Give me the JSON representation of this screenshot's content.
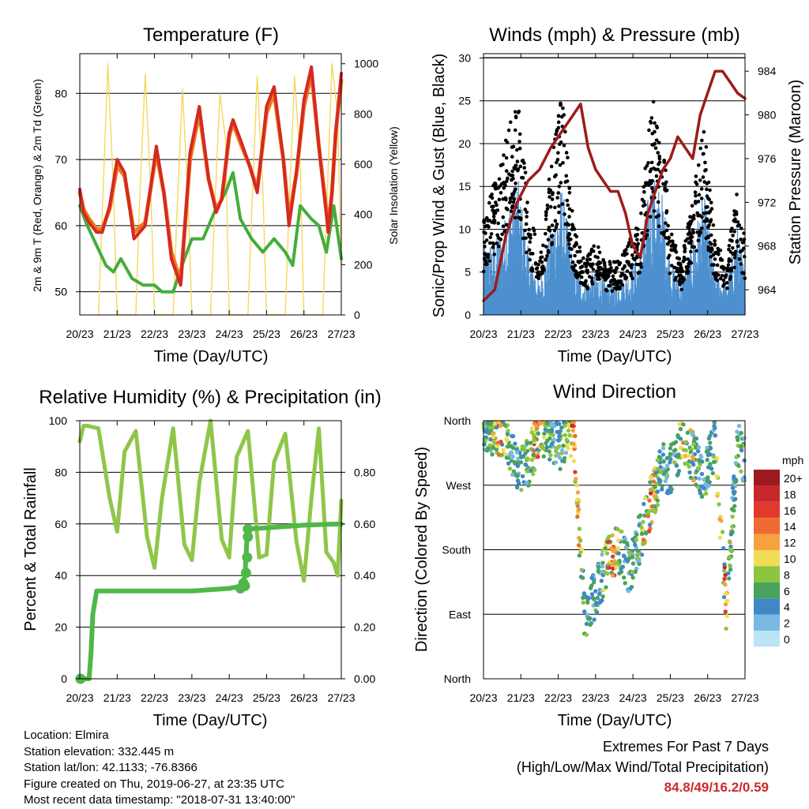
{
  "chart_data": [
    {
      "type": "line",
      "title": "Temperature (F)",
      "xlabel": "Time (Day/UTC)",
      "ylabel": "2m & 9m T (Red, Orange) & 2m Td (Green)",
      "ylabel_right": "Solar Insolation (Yellow)",
      "x_ticks": [
        "20/23",
        "21/23",
        "22/23",
        "23/23",
        "24/23",
        "25/23",
        "26/23",
        "27/23"
      ],
      "y_ticks": [
        "50",
        "60",
        "70",
        "80"
      ],
      "y2_ticks": [
        "0",
        "200",
        "400",
        "600",
        "800",
        "1000"
      ],
      "xlim": [
        0,
        7
      ],
      "ylim": [
        46.5,
        86
      ],
      "y2lim": [
        0,
        1040
      ],
      "grid": true,
      "series": [
        {
          "key": "t2m",
          "color": "#d42a20",
          "x": [
            0,
            0.1,
            0.25,
            0.45,
            0.6,
            0.8,
            1.0,
            1.2,
            1.45,
            1.75,
            2.05,
            2.25,
            2.45,
            2.7,
            2.95,
            3.2,
            3.45,
            3.65,
            3.8,
            4.0,
            4.1,
            4.3,
            4.55,
            4.75,
            5.0,
            5.2,
            5.45,
            5.6,
            5.8,
            6.0,
            6.2,
            6.4,
            6.65,
            6.75,
            6.85,
            7.0
          ],
          "values": [
            65.5,
            62,
            60.5,
            59,
            59,
            63,
            70,
            68,
            58,
            60,
            72,
            65,
            55,
            51,
            71,
            78,
            67,
            62,
            64,
            74,
            76,
            73,
            69,
            65,
            78,
            81,
            70,
            60,
            68,
            79,
            84,
            72,
            59,
            65,
            74,
            83
          ]
        },
        {
          "key": "t9m",
          "color": "#f07820",
          "x": [
            0,
            0.1,
            0.25,
            0.45,
            0.6,
            0.8,
            1.0,
            1.2,
            1.45,
            1.75,
            2.05,
            2.25,
            2.45,
            2.7,
            2.95,
            3.2,
            3.45,
            3.65,
            3.8,
            4.0,
            4.1,
            4.3,
            4.55,
            4.75,
            5.0,
            5.2,
            5.45,
            5.6,
            5.8,
            6.0,
            6.2,
            6.4,
            6.65,
            6.75,
            6.85,
            7.0
          ],
          "values": [
            65,
            62.5,
            61,
            59.5,
            59.5,
            62.5,
            69,
            67.5,
            59,
            60.5,
            71,
            65,
            56,
            51.5,
            70,
            77,
            67,
            62.5,
            64,
            73.5,
            75.5,
            72.5,
            69,
            65.5,
            77,
            80,
            70,
            61,
            68,
            78,
            83,
            72,
            60,
            65,
            74,
            82
          ]
        },
        {
          "key": "td",
          "color": "#44ad3c",
          "x": [
            0,
            0.2,
            0.45,
            0.7,
            0.9,
            1.1,
            1.4,
            1.7,
            2.0,
            2.2,
            2.5,
            2.8,
            3.0,
            3.3,
            3.6,
            3.9,
            4.1,
            4.3,
            4.6,
            4.9,
            5.2,
            5.5,
            5.7,
            5.9,
            6.2,
            6.4,
            6.6,
            6.8,
            7.0
          ],
          "values": [
            63,
            60,
            57,
            54,
            53,
            55,
            52,
            51,
            51,
            50,
            50,
            55,
            58,
            58,
            62,
            65,
            68,
            61,
            58,
            56,
            58,
            56,
            54,
            63,
            61,
            60,
            56,
            63,
            55
          ]
        },
        {
          "key": "solar",
          "color": "#f6d859",
          "axis": "y2",
          "x": [
            0.5,
            0.6,
            0.75,
            0.9,
            1.0,
            1.1,
            1.25,
            1.5,
            1.6,
            1.75,
            1.9,
            2.0,
            2.1,
            2.25,
            2.5,
            2.6,
            2.75,
            2.9,
            3.0,
            3.1,
            3.25,
            3.5,
            3.6,
            3.75,
            3.9,
            4.0,
            4.1,
            4.25,
            4.5,
            4.6,
            4.75,
            4.9,
            5.0,
            5.1,
            5.25,
            5.5,
            5.6,
            5.75,
            5.9,
            6.0,
            6.1,
            6.25,
            6.5,
            6.6,
            6.75,
            6.9,
            7.0
          ],
          "values": [
            0,
            400,
            1000,
            500,
            0,
            0,
            0,
            0,
            450,
            960,
            500,
            0,
            0,
            0,
            0,
            400,
            900,
            450,
            0,
            0,
            0,
            0,
            380,
            880,
            700,
            0,
            0,
            0,
            0,
            400,
            950,
            500,
            0,
            0,
            0,
            0,
            420,
            950,
            600,
            0,
            0,
            0,
            0,
            380,
            1000,
            800,
            200
          ]
        }
      ]
    },
    {
      "type": "scatter",
      "title": "Winds (mph) & Pressure (mb)",
      "xlabel": "Time (Day/UTC)",
      "ylabel": "Sonic/Prop Wind & Gust (Blue, Black)",
      "ylabel_right": "Station Pressure (Maroon)",
      "x_ticks": [
        "20/23",
        "21/23",
        "22/23",
        "23/23",
        "24/23",
        "25/23",
        "26/23",
        "27/23"
      ],
      "y_ticks": [
        "0",
        "5",
        "10",
        "15",
        "20",
        "25",
        "30"
      ],
      "y2_ticks": [
        "964",
        "968",
        "972",
        "976",
        "980",
        "984"
      ],
      "xlim": [
        0,
        7
      ],
      "ylim": [
        0,
        30.5
      ],
      "y2lim": [
        961.7,
        985.6
      ],
      "grid": true,
      "wind": {
        "color": "#4d90cf",
        "profile_x": [
          0,
          0.5,
          0.9,
          1.2,
          1.5,
          1.8,
          2.1,
          2.4,
          2.7,
          3.0,
          3.3,
          3.6,
          3.9,
          4.2,
          4.5,
          4.8,
          5.0,
          5.3,
          5.6,
          5.9,
          6.2,
          6.5,
          6.8,
          7.0
        ],
        "profile_y": [
          6,
          8,
          13,
          6,
          3,
          8,
          12,
          5,
          3,
          4,
          3,
          3,
          4,
          6,
          13,
          11,
          5,
          3,
          7,
          11,
          4,
          3,
          8,
          4
        ]
      },
      "gust": {
        "color": "#000000",
        "profile_x": [
          0,
          0.5,
          0.9,
          1.2,
          1.5,
          1.8,
          2.1,
          2.4,
          2.7,
          3.0,
          3.3,
          3.6,
          3.9,
          4.2,
          4.5,
          4.8,
          5.0,
          5.3,
          5.6,
          5.9,
          6.2,
          6.5,
          6.8,
          7.0
        ],
        "profile_y": [
          9,
          15,
          21,
          11,
          5,
          14,
          21,
          9,
          5,
          7,
          5,
          5,
          7,
          9,
          21,
          17,
          8,
          5,
          11,
          18,
          7,
          5,
          12,
          7
        ]
      },
      "pressure": {
        "color": "#9e1b1b",
        "x": [
          0,
          0.3,
          0.6,
          0.9,
          1.2,
          1.5,
          1.8,
          2.1,
          2.4,
          2.6,
          2.8,
          3.0,
          3.2,
          3.4,
          3.6,
          3.8,
          4.0,
          4.2,
          4.4,
          4.6,
          4.8,
          5.0,
          5.2,
          5.4,
          5.6,
          5.8,
          6.0,
          6.2,
          6.4,
          6.6,
          6.8,
          7.0
        ],
        "values": [
          963,
          964,
          969,
          972,
          974,
          975,
          977,
          978.5,
          980,
          981,
          977,
          975,
          974,
          973,
          973,
          971,
          968,
          967,
          971,
          973,
          975,
          976,
          978,
          977,
          976,
          980,
          982,
          984,
          984,
          983,
          982,
          981.5
        ]
      }
    },
    {
      "type": "line",
      "title": "Relative Humidity (%) & Precipitation (in)",
      "xlabel": "Time (Day/UTC)",
      "ylabel": "Percent & Total Rainfall",
      "x_ticks": [
        "20/23",
        "21/23",
        "22/23",
        "23/23",
        "24/23",
        "25/23",
        "26/23",
        "27/23"
      ],
      "y_ticks": [
        "0",
        "20",
        "40",
        "60",
        "80",
        "100"
      ],
      "y2_ticks": [
        "0.00",
        "0.20",
        "0.40",
        "0.60",
        "0.80"
      ],
      "xlim": [
        0,
        7
      ],
      "ylim": [
        0,
        100
      ],
      "y2lim": [
        0,
        1.0
      ],
      "grid": true,
      "series": [
        {
          "key": "rh",
          "color": "#8fc64a",
          "x": [
            0,
            0.1,
            0.2,
            0.5,
            0.8,
            1.0,
            1.2,
            1.5,
            1.8,
            2.0,
            2.2,
            2.5,
            2.8,
            3.0,
            3.2,
            3.5,
            3.8,
            4.0,
            4.2,
            4.5,
            4.8,
            5.0,
            5.2,
            5.5,
            5.8,
            6.0,
            6.2,
            6.4,
            6.6,
            6.8,
            6.9,
            7.0
          ],
          "values": [
            92,
            98,
            98,
            97,
            70,
            57,
            88,
            96,
            55,
            43,
            70,
            97,
            52,
            46,
            76,
            100,
            54,
            47,
            86,
            96,
            47,
            48,
            84,
            95,
            53,
            38,
            70,
            97,
            49,
            45,
            40,
            69
          ]
        },
        {
          "key": "precip",
          "color": "#4fb848",
          "axis": "y2",
          "x": [
            0,
            0.25,
            0.3,
            0.35,
            0.45,
            1.0,
            2.0,
            3.0,
            4.0,
            4.35,
            4.42,
            4.48,
            4.5,
            5.0,
            6.0,
            7.0
          ],
          "values": [
            0.0,
            0.0,
            0.1,
            0.25,
            0.34,
            0.34,
            0.34,
            0.34,
            0.35,
            0.36,
            0.4,
            0.55,
            0.58,
            0.585,
            0.595,
            0.6
          ]
        }
      ]
    },
    {
      "type": "scatter",
      "title": "Wind Direction",
      "xlabel": "Time (Day/UTC)",
      "ylabel": "Direction (Colored By Speed)",
      "x_ticks": [
        "20/23",
        "21/23",
        "22/23",
        "23/23",
        "24/23",
        "25/23",
        "26/23",
        "27/23"
      ],
      "y_ticks": [
        "North",
        "East",
        "South",
        "West",
        "North"
      ],
      "xlim": [
        0,
        7
      ],
      "ylim": [
        0,
        360
      ],
      "grid": true,
      "direction_profile": {
        "x": [
          0,
          0.5,
          0.9,
          1.2,
          1.5,
          1.8,
          2.1,
          2.4,
          2.7,
          3.0,
          3.3,
          3.6,
          3.9,
          4.2,
          4.5,
          4.8,
          5.0,
          5.3,
          5.6,
          5.9,
          6.2,
          6.5,
          6.8,
          7.0
        ],
        "centre": [
          350,
          345,
          290,
          300,
          345,
          340,
          325,
          350,
          90,
          120,
          160,
          180,
          150,
          200,
          250,
          300,
          290,
          330,
          310,
          280,
          330,
          100,
          330,
          300
        ]
      },
      "legend": {
        "title": "mph",
        "labels": [
          "20+",
          "18",
          "16",
          "14",
          "12",
          "10",
          "8",
          "6",
          "4",
          "2",
          "0"
        ],
        "colors": [
          "#9b1b1e",
          "#c7262a",
          "#e03a2d",
          "#ef6a32",
          "#f6a23e",
          "#f0dd55",
          "#8cc540",
          "#49a35a",
          "#3e88c5",
          "#7ab8e3",
          "#bde3f6"
        ]
      }
    }
  ],
  "info": {
    "location": "Location: Elmira",
    "elevation": "Station elevation: 332.445 m",
    "latlon": "Station lat/lon: 42.1133; -76.8366",
    "created": "Figure created on Thu, 2019-06-27, at 23:35 UTC",
    "recent": "Most recent data timestamp: \"2018-07-31 13:40:00\""
  },
  "extremes": {
    "line1": "Extremes For Past 7 Days",
    "line2": "(High/Low/Max Wind/Total Precipitation)",
    "values": "84.8/49/16.2/0.59"
  }
}
